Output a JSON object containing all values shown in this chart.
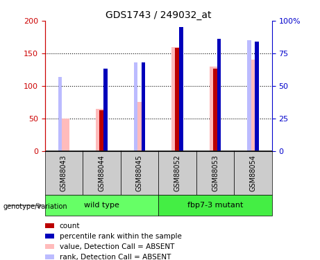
{
  "title": "GDS1743 / 249032_at",
  "samples": [
    "GSM88043",
    "GSM88044",
    "GSM88045",
    "GSM88052",
    "GSM88053",
    "GSM88054"
  ],
  "count_values": [
    0,
    62,
    0,
    158,
    126,
    0
  ],
  "percentile_values_pct": [
    0,
    63,
    68,
    95,
    86,
    84
  ],
  "absent_value_values": [
    50,
    65,
    75,
    160,
    130,
    140
  ],
  "absent_rank_values_pct": [
    57,
    0,
    68,
    0,
    0,
    85
  ],
  "ylim_left": [
    0,
    200
  ],
  "ylim_right": [
    0,
    100
  ],
  "yticks_left": [
    0,
    50,
    100,
    150,
    200
  ],
  "ytick_labels_left": [
    "0",
    "50",
    "100",
    "150",
    "200"
  ],
  "yticks_right": [
    0,
    25,
    50,
    75,
    100
  ],
  "ytick_labels_right": [
    "0",
    "25",
    "50",
    "75",
    "100%"
  ],
  "color_count": "#bb0000",
  "color_percentile": "#0000bb",
  "color_absent_value": "#ffbbbb",
  "color_absent_rank": "#bbbbff",
  "left_axis_color": "#cc0000",
  "right_axis_color": "#0000cc",
  "legend_items": [
    {
      "color": "#bb0000",
      "label": "count"
    },
    {
      "color": "#0000bb",
      "label": "percentile rank within the sample"
    },
    {
      "color": "#ffbbbb",
      "label": "value, Detection Call = ABSENT"
    },
    {
      "color": "#bbbbff",
      "label": "rank, Detection Call = ABSENT"
    }
  ],
  "background_sample": "#cccccc",
  "background_group_wt": "#66ff66",
  "background_group_mut": "#44ee44",
  "group_wt_label": "wild type",
  "group_mut_label": "fbp7-3 mutant",
  "genotype_label": "genotype/variation"
}
